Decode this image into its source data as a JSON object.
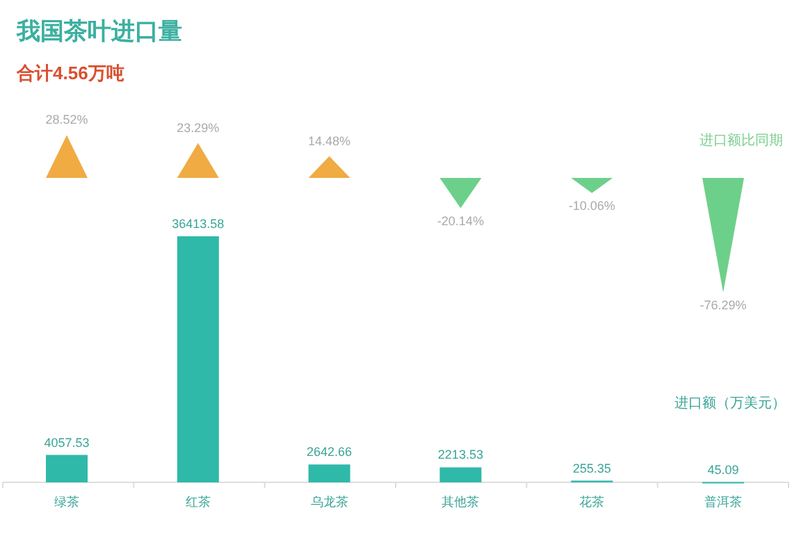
{
  "chart_data": [
    {
      "type": "other",
      "title": "我国茶叶进口量",
      "subtitle": "合计4.56万吨",
      "series": [
        {
          "name": "进口额比同期",
          "color": "#7ccf8f",
          "values": [
            28.52,
            23.29,
            14.48,
            -20.14,
            -10.06,
            -76.29
          ],
          "colors": [
            "#f0ab42",
            "#f0ab42",
            "#f0ab42",
            "#6dd08a",
            "#6dd08a",
            "#6dd08a"
          ],
          "value_labels": [
            "28.52%",
            "23.29%",
            "14.48%",
            "-20.14%",
            "-10.06%",
            "-76.29%"
          ]
        }
      ]
    },
    {
      "type": "bar",
      "categories": [
        "绿茶",
        "红茶",
        "乌龙茶",
        "其他茶",
        "花茶",
        "普洱茶"
      ],
      "data_labels": true,
      "series": [
        {
          "name": "进口额（万美元）",
          "color": "#2fb9a8",
          "values": [
            4057.53,
            36413.58,
            2642.66,
            2213.53,
            255.35,
            45.09
          ]
        }
      ]
    }
  ]
}
